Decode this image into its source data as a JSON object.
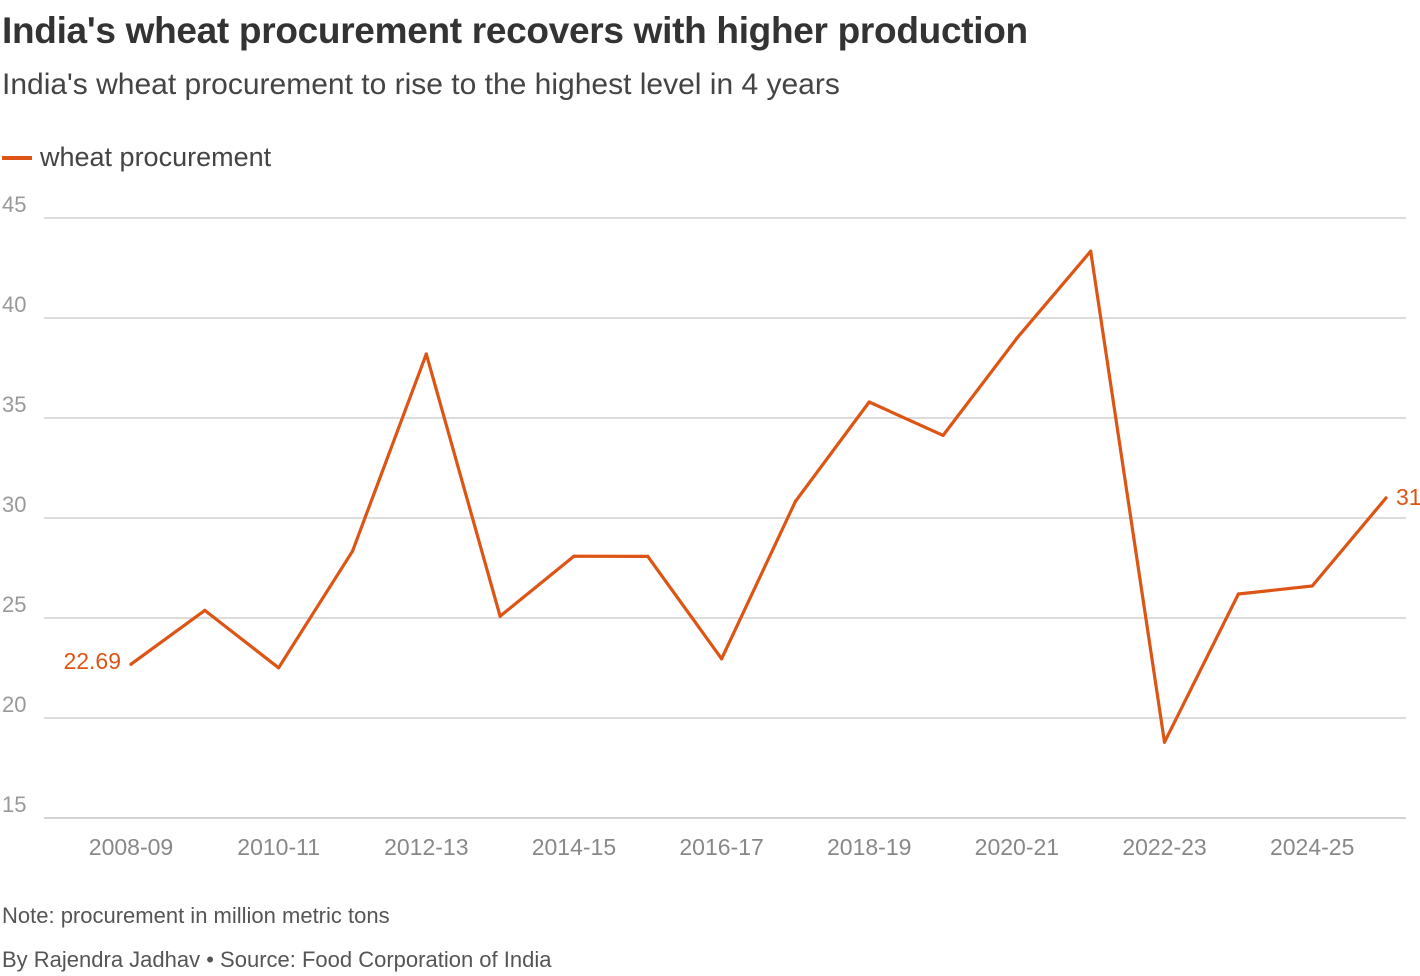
{
  "header": {
    "title": "India's wheat procurement recovers with higher production",
    "subtitle": "India's wheat procurement to rise to the highest level in 4 years"
  },
  "footer": {
    "note": "Note: procurement in million metric tons",
    "byline": "By Rajendra Jadhav • Source: Food Corporation of India"
  },
  "colors": {
    "series": "#dd5515",
    "grid": "#c8c8c8",
    "axis_text": "#999999"
  },
  "chart_data": {
    "type": "line",
    "title": "India's wheat procurement recovers with higher production",
    "subtitle": "India's wheat procurement to rise to the highest level in 4 years",
    "xlabel": "",
    "ylabel": "",
    "ylim": [
      15,
      45
    ],
    "yticks": [
      15,
      20,
      25,
      30,
      35,
      40,
      45
    ],
    "grid": true,
    "legend_position": "top-left",
    "x": [
      "2008-09",
      "2009-10",
      "2010-11",
      "2011-12",
      "2012-13",
      "2013-14",
      "2014-15",
      "2015-16",
      "2016-17",
      "2017-18",
      "2018-19",
      "2019-20",
      "2020-21",
      "2021-22",
      "2022-23",
      "2023-24",
      "2024-25",
      "2025-26"
    ],
    "xtick_labels": [
      "2008-09",
      "2010-11",
      "2012-13",
      "2014-15",
      "2016-17",
      "2018-19",
      "2020-21",
      "2022-23",
      "2024-25"
    ],
    "series": [
      {
        "name": "wheat procurement",
        "values": [
          22.69,
          25.38,
          22.51,
          28.34,
          38.2,
          25.09,
          28.09,
          28.08,
          22.96,
          30.83,
          35.8,
          34.13,
          38.99,
          43.34,
          18.79,
          26.2,
          26.6,
          31
        ]
      }
    ],
    "annotations": [
      {
        "index": 0,
        "text": "22.69"
      },
      {
        "index": 17,
        "text": "31"
      }
    ]
  }
}
